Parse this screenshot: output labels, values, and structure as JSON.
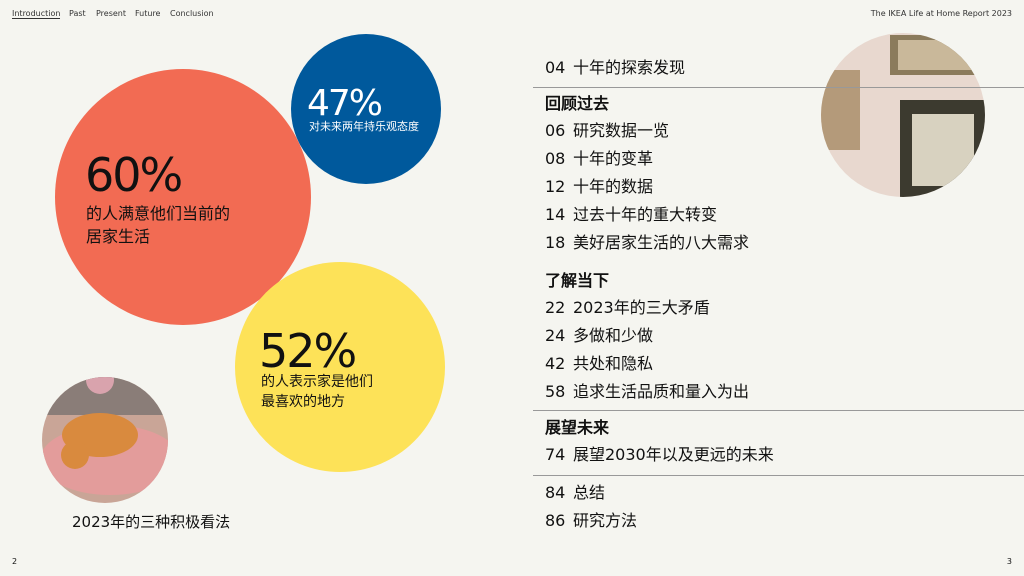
{
  "header": {
    "nav": [
      "Introduction",
      "Past",
      "Present",
      "Future",
      "Conclusion"
    ],
    "report_title": "The IKEA Life at Home Report 2023"
  },
  "stats": [
    {
      "value": "60%",
      "lines": [
        "的人满意他们当前的",
        "居家生活"
      ]
    },
    {
      "value": "47%",
      "lines": [
        "对未来两年持乐观态度"
      ]
    },
    {
      "value": "52%",
      "lines": [
        "的人表示家是他们",
        "最喜欢的地方"
      ]
    }
  ],
  "caption": "2023年的三种积极看法",
  "toc": {
    "intro": [
      {
        "page": "04",
        "title": "十年的探索发现"
      }
    ],
    "sections": [
      {
        "heading": "回顾过去",
        "entries": [
          {
            "page": "06",
            "title": "研究数据一览"
          },
          {
            "page": "08",
            "title": "十年的变革"
          },
          {
            "page": "12",
            "title": "十年的数据"
          },
          {
            "page": "14",
            "title": "过去十年的重大转变"
          },
          {
            "page": "18",
            "title": "美好居家生活的八大需求"
          }
        ]
      },
      {
        "heading": "了解当下",
        "entries": [
          {
            "page": "22",
            "title": "2023年的三大矛盾"
          },
          {
            "page": "24",
            "title": "多做和少做"
          },
          {
            "page": "42",
            "title": "共处和隐私"
          },
          {
            "page": "58",
            "title": "追求生活品质和量入为出"
          }
        ]
      },
      {
        "heading": "展望未来",
        "entries": [
          {
            "page": "74",
            "title": "展望2030年以及更远的未来"
          }
        ]
      }
    ],
    "end": [
      {
        "page": "84",
        "title": "总结"
      },
      {
        "page": "86",
        "title": "研究方法"
      }
    ]
  },
  "footer": {
    "left_page": "2",
    "right_page": "3"
  }
}
